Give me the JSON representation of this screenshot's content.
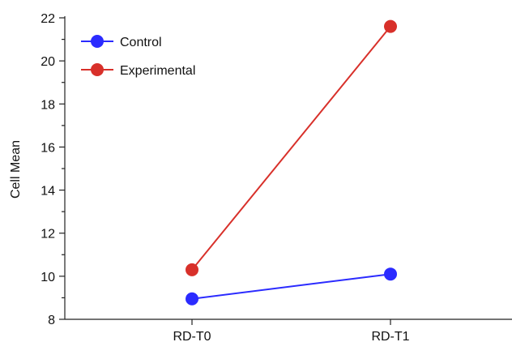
{
  "chart_data": {
    "type": "line",
    "title": "",
    "xlabel": "",
    "ylabel": "Cell Mean",
    "categories": [
      "RD-T0",
      "RD-T1"
    ],
    "ylim": [
      8,
      22
    ],
    "yticks": [
      8,
      10,
      12,
      14,
      16,
      18,
      20,
      22
    ],
    "grid": false,
    "legend_position": "top-left",
    "series": [
      {
        "name": "Control",
        "color": "#2b2bff",
        "values": [
          8.95,
          10.1
        ]
      },
      {
        "name": "Experimental",
        "color": "#d8302a",
        "values": [
          10.3,
          21.6
        ]
      }
    ]
  }
}
